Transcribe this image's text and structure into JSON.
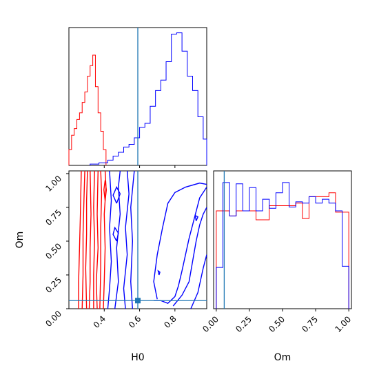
{
  "chart_data": {
    "type": "corner",
    "parameters": [
      "H0",
      "Om"
    ],
    "truth": {
      "H0": 0.59,
      "Om": 0.06
    },
    "colors": {
      "series_a": "#ff0000",
      "series_b": "#0000ff",
      "truth": "#1f77b4"
    },
    "panels": [
      {
        "id": "h0-marginal",
        "type": "histogram",
        "parameter": "H0",
        "xlim": [
          0.2,
          0.98
        ],
        "show_yticks": false,
        "series": [
          {
            "color": "#ff0000",
            "bins": [
              0.2,
              0.215,
              0.23,
              0.245,
              0.26,
              0.275,
              0.29,
              0.305,
              0.32,
              0.335,
              0.35,
              0.365,
              0.38,
              0.395,
              0.41
            ],
            "values": [
              0.12,
              0.23,
              0.28,
              0.35,
              0.4,
              0.48,
              0.56,
              0.68,
              0.76,
              0.84,
              0.6,
              0.4,
              0.26,
              0.12
            ]
          },
          {
            "color": "#0000ff",
            "bins": [
              0.32,
              0.37,
              0.42,
              0.45,
              0.48,
              0.51,
              0.54,
              0.57,
              0.6,
              0.63,
              0.66,
              0.69,
              0.72,
              0.75,
              0.78,
              0.81,
              0.84,
              0.87,
              0.9,
              0.93,
              0.96,
              0.98
            ],
            "values": [
              0.01,
              0.02,
              0.04,
              0.07,
              0.1,
              0.14,
              0.16,
              0.21,
              0.29,
              0.32,
              0.45,
              0.57,
              0.65,
              0.79,
              1.0,
              1.01,
              0.87,
              0.68,
              0.57,
              0.37,
              0.2
            ]
          }
        ]
      },
      {
        "id": "joint-contours",
        "type": "contour",
        "x": "H0",
        "y": "Om",
        "xlim": [
          0.2,
          0.98
        ],
        "ylim": [
          0.0,
          1.02
        ],
        "series": [
          {
            "color": "#ff0000",
            "contours": [
              [
                [
                  0.255,
                  0.0
                ],
                [
                  0.255,
                  0.2
                ],
                [
                  0.26,
                  0.45
                ],
                [
                  0.265,
                  0.7
                ],
                [
                  0.27,
                  1.02
                ]
              ],
              [
                [
                  0.275,
                  0.0
                ],
                [
                  0.28,
                  0.25
                ],
                [
                  0.28,
                  0.55
                ],
                [
                  0.285,
                  0.8
                ],
                [
                  0.29,
                  1.02
                ]
              ],
              [
                [
                  0.3,
                  0.0
                ],
                [
                  0.295,
                  0.3
                ],
                [
                  0.3,
                  0.55
                ],
                [
                  0.3,
                  0.8
                ],
                [
                  0.305,
                  1.02
                ]
              ],
              [
                [
                  0.315,
                  0.0
                ],
                [
                  0.32,
                  0.2
                ],
                [
                  0.32,
                  0.45
                ],
                [
                  0.325,
                  0.7
                ],
                [
                  0.32,
                  1.02
                ]
              ],
              [
                [
                  0.34,
                  0.0
                ],
                [
                  0.34,
                  0.25
                ],
                [
                  0.345,
                  0.5
                ],
                [
                  0.34,
                  0.75
                ],
                [
                  0.345,
                  1.02
                ]
              ],
              [
                [
                  0.36,
                  0.0
                ],
                [
                  0.355,
                  0.2
                ],
                [
                  0.365,
                  0.45
                ],
                [
                  0.36,
                  0.7
                ],
                [
                  0.365,
                  1.02
                ]
              ],
              [
                [
                  0.375,
                  0.0
                ],
                [
                  0.38,
                  0.3
                ],
                [
                  0.38,
                  0.6
                ],
                [
                  0.385,
                  0.85
                ],
                [
                  0.38,
                  1.02
                ]
              ],
              [
                [
                  0.395,
                  0.0
                ],
                [
                  0.4,
                  0.2
                ],
                [
                  0.405,
                  0.45
                ],
                [
                  0.4,
                  0.7
                ],
                [
                  0.41,
                  0.9
                ],
                [
                  0.405,
                  1.02
                ]
              ],
              [
                [
                  0.405,
                  0.8
                ],
                [
                  0.412,
                  0.88
                ],
                [
                  0.405,
                  0.95
                ],
                [
                  0.398,
                  0.88
                ],
                [
                  0.405,
                  0.8
                ]
              ]
            ]
          },
          {
            "color": "#0000ff",
            "contours": [
              [
                [
                  0.42,
                  0.0
                ],
                [
                  0.43,
                  0.15
                ],
                [
                  0.44,
                  0.35
                ],
                [
                  0.43,
                  0.6
                ],
                [
                  0.44,
                  0.8
                ],
                [
                  0.43,
                  1.02
                ]
              ],
              [
                [
                  0.46,
                  0.0
                ],
                [
                  0.48,
                  0.2
                ],
                [
                  0.47,
                  0.45
                ],
                [
                  0.49,
                  0.7
                ],
                [
                  0.48,
                  0.9
                ],
                [
                  0.49,
                  1.02
                ]
              ],
              [
                [
                  0.52,
                  0.0
                ],
                [
                  0.51,
                  0.15
                ],
                [
                  0.53,
                  0.4
                ],
                [
                  0.52,
                  0.6
                ],
                [
                  0.54,
                  0.85
                ],
                [
                  0.53,
                  1.02
                ]
              ],
              [
                [
                  0.56,
                  0.0
                ],
                [
                  0.55,
                  0.2
                ],
                [
                  0.56,
                  0.5
                ],
                [
                  0.55,
                  0.75
                ],
                [
                  0.57,
                  1.02
                ]
              ],
              [
                [
                  0.47,
                  0.78
                ],
                [
                  0.49,
                  0.85
                ],
                [
                  0.47,
                  0.9
                ],
                [
                  0.45,
                  0.84
                ],
                [
                  0.47,
                  0.78
                ]
              ],
              [
                [
                  0.47,
                  0.5
                ],
                [
                  0.48,
                  0.56
                ],
                [
                  0.46,
                  0.6
                ],
                [
                  0.45,
                  0.55
                ],
                [
                  0.47,
                  0.5
                ]
              ],
              [
                [
                  0.7,
                  0.07
                ],
                [
                  0.68,
                  0.2
                ],
                [
                  0.7,
                  0.4
                ],
                [
                  0.73,
                  0.6
                ],
                [
                  0.76,
                  0.78
                ],
                [
                  0.8,
                  0.86
                ],
                [
                  0.86,
                  0.9
                ],
                [
                  0.94,
                  0.93
                ],
                [
                  0.98,
                  0.92
                ]
              ],
              [
                [
                  0.68,
                  0.06
                ],
                [
                  0.72,
                  0.06
                ],
                [
                  0.76,
                  0.04
                ],
                [
                  0.8,
                  0.09
                ],
                [
                  0.82,
                  0.17
                ],
                [
                  0.84,
                  0.28
                ],
                [
                  0.86,
                  0.4
                ],
                [
                  0.88,
                  0.52
                ],
                [
                  0.9,
                  0.62
                ],
                [
                  0.92,
                  0.72
                ],
                [
                  0.94,
                  0.82
                ],
                [
                  0.98,
                  0.9
                ]
              ],
              [
                [
                  0.79,
                  0.02
                ],
                [
                  0.84,
                  0.1
                ],
                [
                  0.88,
                  0.2
                ],
                [
                  0.9,
                  0.35
                ],
                [
                  0.92,
                  0.5
                ],
                [
                  0.94,
                  0.62
                ],
                [
                  0.96,
                  0.7
                ],
                [
                  0.98,
                  0.75
                ]
              ],
              [
                [
                  0.89,
                  0.0
                ],
                [
                  0.93,
                  0.12
                ],
                [
                  0.96,
                  0.3
                ],
                [
                  0.98,
                  0.4
                ]
              ],
              [
                [
                  0.71,
                  0.25
                ],
                [
                  0.715,
                  0.27
                ],
                [
                  0.705,
                  0.28
                ],
                [
                  0.71,
                  0.25
                ]
              ],
              [
                [
                  0.92,
                  0.65
                ],
                [
                  0.93,
                  0.68
                ],
                [
                  0.915,
                  0.69
                ],
                [
                  0.92,
                  0.65
                ]
              ]
            ]
          }
        ]
      },
      {
        "id": "om-marginal",
        "type": "histogram",
        "parameter": "Om",
        "xlim": [
          -0.02,
          1.02
        ],
        "show_yticks": false,
        "series": [
          {
            "color": "#ff0000",
            "bins": [
              0.0,
              0.05,
              0.1,
              0.15,
              0.2,
              0.25,
              0.3,
              0.35,
              0.4,
              0.45,
              0.5,
              0.55,
              0.6,
              0.65,
              0.7,
              0.75,
              0.8,
              0.85,
              0.9,
              0.95,
              1.0
            ],
            "values": [
              0.76,
              0.76,
              0.72,
              0.76,
              0.76,
              0.76,
              0.69,
              0.69,
              0.8,
              0.8,
              0.8,
              0.8,
              0.82,
              0.7,
              0.87,
              0.87,
              0.87,
              0.9,
              0.75,
              0.75
            ]
          },
          {
            "color": "#0000ff",
            "bins": [
              0.0,
              0.05,
              0.1,
              0.15,
              0.2,
              0.25,
              0.3,
              0.35,
              0.4,
              0.45,
              0.5,
              0.55,
              0.6,
              0.65,
              0.7,
              0.75,
              0.8,
              0.85,
              0.9,
              0.95,
              1.0
            ],
            "values": [
              0.32,
              0.98,
              0.72,
              0.97,
              0.76,
              0.94,
              0.76,
              0.85,
              0.78,
              0.9,
              0.98,
              0.79,
              0.83,
              0.82,
              0.87,
              0.82,
              0.85,
              0.82,
              0.76,
              0.33
            ]
          }
        ]
      }
    ],
    "axes": [
      {
        "id": "h0-x-axis",
        "label": "H0",
        "ticks": [
          0.4,
          0.6,
          0.8
        ],
        "tick_labels": [
          "0.4",
          "0.6",
          "0.8"
        ]
      },
      {
        "id": "om-y-axis",
        "label": "Om",
        "ticks": [
          0.0,
          0.25,
          0.5,
          0.75,
          1.0
        ],
        "tick_labels": [
          "0.00",
          "0.25",
          "0.50",
          "0.75",
          "1.00"
        ]
      },
      {
        "id": "om-x-axis",
        "label": "Om",
        "ticks": [
          0.0,
          0.25,
          0.5,
          0.75,
          1.0
        ],
        "tick_labels": [
          "0.00",
          "0.25",
          "0.50",
          "0.75",
          "1.00"
        ]
      }
    ],
    "grid": false,
    "legend": "none"
  }
}
